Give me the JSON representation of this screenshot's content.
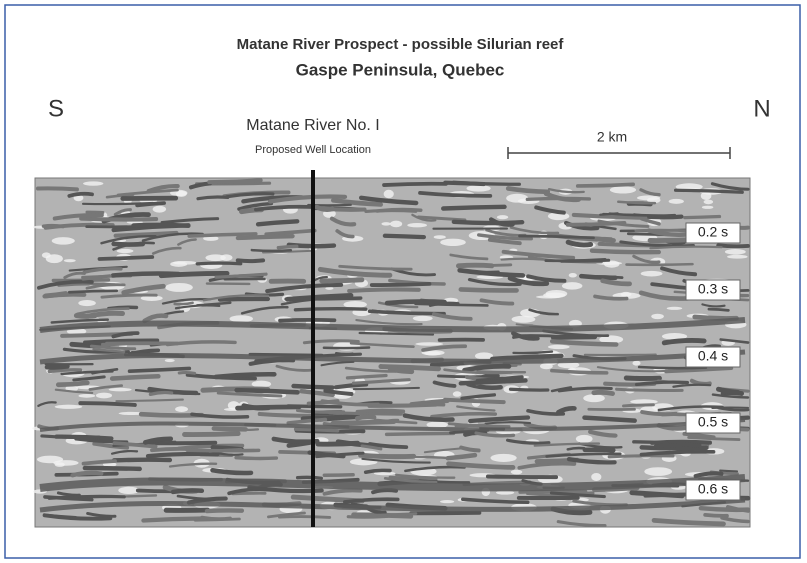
{
  "header": {
    "title": "Matane River Prospect - possible Silurian reef",
    "subtitle": "Gaspe Peninsula, Quebec"
  },
  "directions": {
    "left": "S",
    "right": "N"
  },
  "well": {
    "name": "Matane River No. I",
    "note": "Proposed Well Location"
  },
  "scale": {
    "label": "2 km"
  },
  "time_labels": [
    "0.2 s",
    "0.3 s",
    "0.4 s",
    "0.5 s",
    "0.6 s"
  ]
}
